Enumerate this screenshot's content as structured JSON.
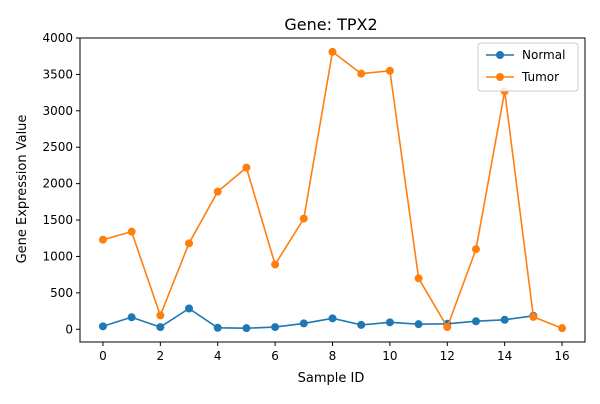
{
  "chart_data": {
    "type": "line",
    "title": "Gene: TPX2",
    "xlabel": "Sample ID",
    "ylabel": "Gene Expression Value",
    "xlim": [
      -0.8,
      16.8
    ],
    "ylim": [
      -175,
      4000
    ],
    "xticks": [
      0,
      2,
      4,
      6,
      8,
      10,
      12,
      14,
      16
    ],
    "yticks": [
      0,
      500,
      1000,
      1500,
      2000,
      2500,
      3000,
      3500,
      4000
    ],
    "grid": false,
    "legend_position": "upper right",
    "x": [
      0,
      1,
      2,
      3,
      4,
      5,
      6,
      7,
      8,
      9,
      10,
      11,
      12,
      13,
      14,
      15,
      16
    ],
    "series": [
      {
        "name": "Normal",
        "color": "#1f77b4",
        "values": [
          40,
          165,
          30,
          285,
          20,
          15,
          30,
          80,
          150,
          60,
          95,
          70,
          75,
          110,
          130,
          185,
          null
        ]
      },
      {
        "name": "Tumor",
        "color": "#ff7f0e",
        "values": [
          1230,
          1340,
          190,
          1180,
          1890,
          2220,
          890,
          1520,
          3810,
          3510,
          3550,
          700,
          30,
          1100,
          3270,
          170,
          15
        ]
      }
    ]
  }
}
